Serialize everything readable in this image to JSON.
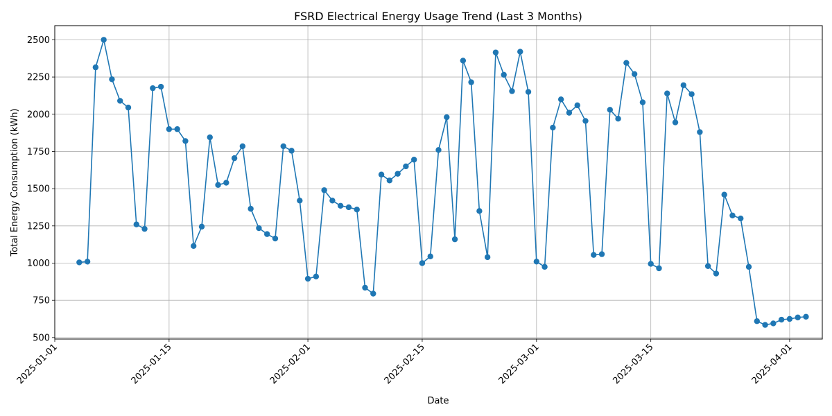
{
  "chart_data": {
    "type": "line",
    "title": "FSRD Electrical Energy Usage Trend (Last 3 Months)",
    "xlabel": "Date",
    "ylabel": "Total Energy Consumption (kWh)",
    "x_ticks": [
      "2025-01-01",
      "2025-01-15",
      "2025-02-01",
      "2025-02-15",
      "2025-03-01",
      "2025-03-15",
      "2025-04-01"
    ],
    "y_ticks": [
      500,
      750,
      1000,
      1250,
      1500,
      1750,
      2000,
      2250,
      2500
    ],
    "xlim": [
      "2025-01-01",
      "2025-04-05"
    ],
    "ylim": [
      490,
      2595
    ],
    "grid": true,
    "color": "#1f77b4",
    "series": [
      {
        "x": [
          "2025-01-04",
          "2025-01-05",
          "2025-01-06",
          "2025-01-07",
          "2025-01-08",
          "2025-01-09",
          "2025-01-10",
          "2025-01-11",
          "2025-01-12",
          "2025-01-13",
          "2025-01-14",
          "2025-01-15",
          "2025-01-16",
          "2025-01-17",
          "2025-01-18",
          "2025-01-19",
          "2025-01-20",
          "2025-01-21",
          "2025-01-22",
          "2025-01-23",
          "2025-01-24",
          "2025-01-25",
          "2025-01-26",
          "2025-01-27",
          "2025-01-28",
          "2025-01-29",
          "2025-01-30",
          "2025-01-31",
          "2025-02-01",
          "2025-02-02",
          "2025-02-03",
          "2025-02-04",
          "2025-02-05",
          "2025-02-06",
          "2025-02-07",
          "2025-02-08",
          "2025-02-09",
          "2025-02-10",
          "2025-02-11",
          "2025-02-12",
          "2025-02-13",
          "2025-02-14",
          "2025-02-15",
          "2025-02-16",
          "2025-02-17",
          "2025-02-18",
          "2025-02-19",
          "2025-02-20",
          "2025-02-21",
          "2025-02-22",
          "2025-02-23",
          "2025-02-24",
          "2025-02-25",
          "2025-02-26",
          "2025-02-27",
          "2025-02-28",
          "2025-03-01",
          "2025-03-02",
          "2025-03-03",
          "2025-03-04",
          "2025-03-05",
          "2025-03-06",
          "2025-03-07",
          "2025-03-08",
          "2025-03-09",
          "2025-03-10",
          "2025-03-11",
          "2025-03-12",
          "2025-03-13",
          "2025-03-14",
          "2025-03-15",
          "2025-03-16",
          "2025-03-17",
          "2025-03-18",
          "2025-03-19",
          "2025-03-20",
          "2025-03-21",
          "2025-03-22",
          "2025-03-23",
          "2025-03-24",
          "2025-03-25",
          "2025-03-26",
          "2025-03-27",
          "2025-03-28",
          "2025-03-29",
          "2025-03-30",
          "2025-03-31",
          "2025-04-01",
          "2025-04-02",
          "2025-04-03"
        ],
        "values": [
          1005,
          1010,
          2315,
          2500,
          2235,
          2090,
          2045,
          1260,
          1230,
          2175,
          2185,
          1900,
          1900,
          1820,
          1115,
          1245,
          1845,
          1525,
          1540,
          1705,
          1785,
          1365,
          1235,
          1195,
          1165,
          1785,
          1755,
          1420,
          895,
          910,
          1490,
          1420,
          1385,
          1375,
          1360,
          835,
          795,
          1595,
          1555,
          1600,
          1650,
          1695,
          1000,
          1045,
          1760,
          1980,
          1160,
          2360,
          2215,
          1350,
          1040,
          2415,
          2265,
          2155,
          2420,
          2150,
          1010,
          975,
          1910,
          2100,
          2010,
          2060,
          1955,
          1055,
          1060,
          2030,
          1970,
          2345,
          2270,
          2080,
          995,
          965,
          2140,
          1945,
          2195,
          2135,
          1880,
          980,
          930,
          1460,
          1320,
          1300,
          975,
          610,
          585,
          595,
          620,
          625,
          635,
          640
        ]
      }
    ]
  }
}
